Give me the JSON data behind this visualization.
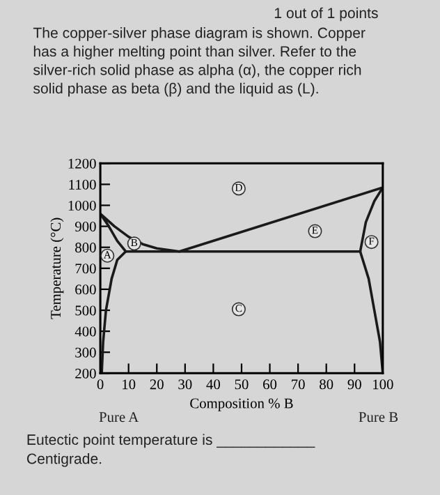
{
  "chart_data": {
    "type": "line",
    "title": "The copper-silver phase diagram is shown. Copper\nhas a higher melting point than silver. Refer to the\nsilver-rich solid phase as alpha (α), the copper rich\nsolid phase as beta (β) and the liquid as (L).",
    "xlabel": "Composition % B",
    "ylabel": "Temperature (°C)",
    "xlim": [
      0,
      100
    ],
    "ylim": [
      200,
      1200
    ],
    "xticks": [
      0,
      10,
      20,
      30,
      40,
      50,
      60,
      70,
      80,
      90,
      100
    ],
    "yticks": [
      200,
      300,
      400,
      500,
      600,
      700,
      800,
      900,
      1000,
      1100,
      1200
    ],
    "grid": false,
    "legend": false,
    "marker": "none",
    "line_style": "solid",
    "series": [
      {
        "color": "#1a1a1a",
        "x": [
          0.5,
          1,
          2,
          4,
          6,
          9,
          6,
          3,
          0,
          5,
          10,
          15,
          20,
          28,
          100,
          97,
          94,
          92,
          95,
          97,
          99,
          100
        ],
        "values": [
          200,
          350,
          500,
          650,
          740,
          780,
          830,
          900,
          960,
          900,
          850,
          815,
          795,
          780,
          1085,
          1020,
          920,
          780,
          650,
          500,
          350,
          200
        ]
      },
      {
        "color": "#1a1a1a",
        "x": [
          9,
          92
        ],
        "values": [
          780,
          780
        ]
      }
    ],
    "annotations": [
      "1 out of 1 points",
      "Pure A",
      "Pure B",
      "Eutectic point temperature is ____________\nCentigrade.",
      {
        "text": "A",
        "x": 2.5,
        "y": 760
      },
      {
        "text": "B",
        "x": 12,
        "y": 818
      },
      {
        "text": "C",
        "x": 49,
        "y": 505
      },
      {
        "text": "D",
        "x": 49,
        "y": 1080
      },
      {
        "text": "E",
        "x": 76,
        "y": 877
      },
      {
        "text": "F",
        "x": 96,
        "y": 825
      }
    ]
  }
}
